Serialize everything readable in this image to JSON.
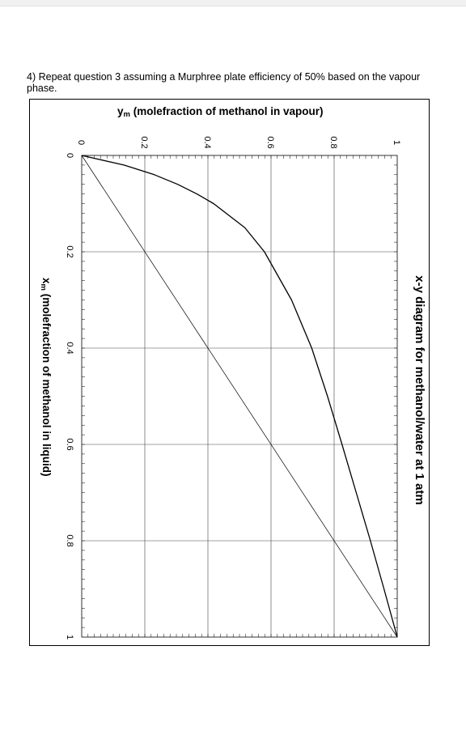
{
  "question": {
    "text": "4) Repeat question 3 assuming a Murphree plate efficiency of 50% based on the vapour phase."
  },
  "chart_data": {
    "type": "line",
    "title": "x-y diagram for methanol/water at 1 atm",
    "xlabel_main": "x",
    "xlabel_sub": "m",
    "xlabel_rest": " (molefraction of methanol in liquid)",
    "ylabel_main": "y",
    "ylabel_sub": "m",
    "ylabel_rest": " (molefraction of methanol in vapour)",
    "xlim": [
      0,
      1
    ],
    "ylim": [
      0,
      1
    ],
    "x_ticks": [
      "0",
      "0.2",
      "0.4",
      "0.6",
      "0.8",
      "1"
    ],
    "y_ticks": [
      "0",
      "0.2",
      "0.4",
      "0.6",
      "0.8",
      "1"
    ],
    "grid": true,
    "orientation": "rotated 90° clockwise",
    "series": [
      {
        "x": [
          0,
          0.02,
          0.04,
          0.06,
          0.08,
          0.1,
          0.15,
          0.2,
          0.3,
          0.4,
          0.5,
          0.6,
          0.7,
          0.8,
          0.9,
          0.95,
          1.0
        ],
        "y": [
          0,
          0.134,
          0.23,
          0.304,
          0.365,
          0.418,
          0.517,
          0.579,
          0.665,
          0.729,
          0.779,
          0.825,
          0.87,
          0.915,
          0.958,
          0.979,
          1.0
        ]
      },
      {
        "x": [
          0,
          1
        ],
        "y": [
          0,
          1
        ]
      }
    ]
  }
}
